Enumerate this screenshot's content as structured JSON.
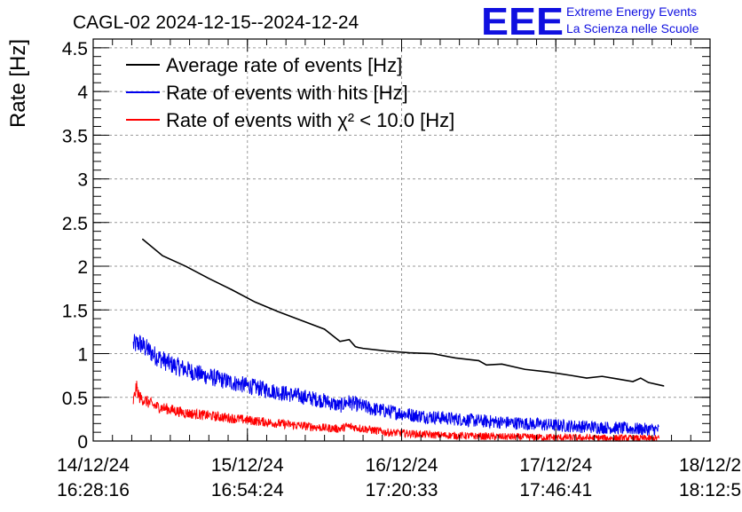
{
  "header": {
    "title": "CAGL-02 2024-12-15--2024-12-24"
  },
  "logo": {
    "mark": "EEE",
    "line1": "Extreme Energy Events",
    "line2": "La Scienza nelle Scuole",
    "color": "#1010e0"
  },
  "chart_data": {
    "type": "line",
    "title": "CAGL-02 2024-12-15--2024-12-24",
    "xlabel": "",
    "ylabel": "Rate [Hz]",
    "xlim": [
      0,
      4
    ],
    "ylim": [
      0,
      4.6
    ],
    "grid": true,
    "legend_position": "top-left",
    "x_ticks": [
      {
        "value": 0,
        "date": "14/12/24",
        "time": "16:28:16"
      },
      {
        "value": 1,
        "date": "15/12/24",
        "time": "16:54:24"
      },
      {
        "value": 2,
        "date": "16/12/24",
        "time": "17:20:33"
      },
      {
        "value": 3,
        "date": "17/12/24",
        "time": "17:46:41"
      },
      {
        "value": 4,
        "date": "18/12/2",
        "time": "18:12:5"
      }
    ],
    "y_ticks": [
      "0",
      "0.5",
      "1",
      "1.5",
      "2",
      "2.5",
      "3",
      "3.5",
      "4",
      "4.5"
    ],
    "y_tick_values": [
      0,
      0.5,
      1,
      1.5,
      2,
      2.5,
      3,
      3.5,
      4,
      4.5
    ],
    "series": [
      {
        "name": "Average rate of events [Hz]",
        "color": "#000000",
        "kind": "smooth",
        "x": [
          0.32,
          0.45,
          0.6,
          0.75,
          0.9,
          1.05,
          1.2,
          1.35,
          1.5,
          1.6,
          1.66,
          1.7,
          1.72,
          1.75,
          1.9,
          2.05,
          2.2,
          2.35,
          2.5,
          2.55,
          2.65,
          2.8,
          2.95,
          3.1,
          3.2,
          3.3,
          3.4,
          3.5,
          3.55,
          3.6,
          3.7
        ],
        "y": [
          2.31,
          2.12,
          2.0,
          1.86,
          1.73,
          1.59,
          1.48,
          1.38,
          1.28,
          1.14,
          1.16,
          1.08,
          1.07,
          1.06,
          1.03,
          1.01,
          1.0,
          0.95,
          0.92,
          0.87,
          0.88,
          0.82,
          0.79,
          0.75,
          0.72,
          0.74,
          0.71,
          0.68,
          0.72,
          0.67,
          0.63
        ]
      },
      {
        "name": "Rate of events with hits [Hz]",
        "color": "#0000ee",
        "kind": "noisy",
        "x_range": [
          0.26,
          3.67
        ],
        "trend_x": [
          0.26,
          0.3,
          0.4,
          0.5,
          0.7,
          0.9,
          1.2,
          1.5,
          1.6,
          1.65,
          1.8,
          2.1,
          2.5,
          3.0,
          3.5,
          3.67
        ],
        "trend_y": [
          1.1,
          1.12,
          0.98,
          0.88,
          0.76,
          0.67,
          0.56,
          0.46,
          0.4,
          0.45,
          0.37,
          0.29,
          0.23,
          0.18,
          0.14,
          0.13
        ],
        "noise_amplitude": 0.12
      },
      {
        "name": "Rate of events with χ² < 10.0 [Hz]",
        "color": "#ff0000",
        "kind": "noisy",
        "x_range": [
          0.26,
          3.67
        ],
        "trend_x": [
          0.26,
          0.28,
          0.3,
          0.4,
          0.6,
          0.9,
          1.2,
          1.5,
          1.6,
          1.65,
          1.9,
          2.2,
          2.6,
          3.0,
          3.5,
          3.67
        ],
        "trend_y": [
          0.45,
          0.62,
          0.5,
          0.4,
          0.32,
          0.26,
          0.2,
          0.15,
          0.14,
          0.17,
          0.1,
          0.07,
          0.05,
          0.04,
          0.03,
          0.03
        ],
        "noise_amplitude": 0.07
      }
    ]
  }
}
